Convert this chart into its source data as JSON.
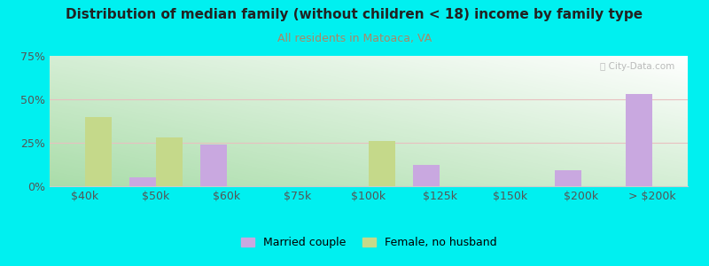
{
  "title": "Distribution of median family (without children < 18) income by family type",
  "subtitle": "All residents in Matoaca, VA",
  "categories": [
    "$40k",
    "$50k",
    "$60k",
    "$75k",
    "$100k",
    "$125k",
    "$150k",
    "$200k",
    "> $200k"
  ],
  "married_couple": [
    0,
    5,
    24,
    0,
    0,
    12,
    0,
    9,
    53
  ],
  "female_no_husband": [
    40,
    28,
    0,
    0,
    26,
    0,
    0,
    0,
    0
  ],
  "married_color": "#c9a8e0",
  "female_color": "#c5d98a",
  "bg_outer": "#00f0f0",
  "title_color": "#222222",
  "subtitle_color": "#aa8866",
  "axis_label_color": "#555555",
  "watermark": "City-Data.com",
  "ylim": [
    0,
    75
  ],
  "yticks": [
    0,
    25,
    50,
    75
  ],
  "yticklabels": [
    "0%",
    "25%",
    "50%",
    "75%"
  ],
  "legend_labels": [
    "Married couple",
    "Female, no husband"
  ],
  "bar_width": 0.38
}
